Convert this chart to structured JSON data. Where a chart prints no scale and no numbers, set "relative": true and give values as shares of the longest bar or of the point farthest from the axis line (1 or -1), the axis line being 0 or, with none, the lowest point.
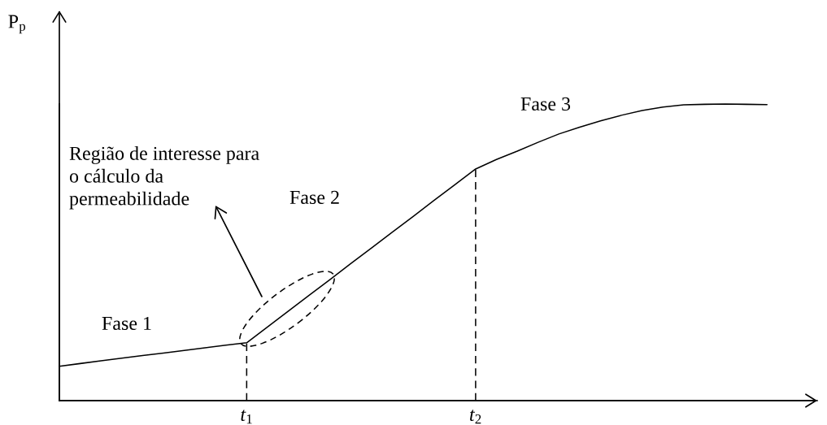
{
  "chart_data": {
    "type": "line",
    "relative": true,
    "ylabel": "P$_{p}$",
    "categories": [
      null,
      null,
      null,
      null,
      null,
      null,
      null,
      null,
      null,
      "t$_{1}$",
      null,
      null,
      null,
      null,
      null,
      null,
      null,
      null,
      null,
      null,
      "t$_{2}$",
      null,
      null,
      null,
      null,
      null,
      null,
      null,
      null,
      null,
      null,
      null,
      null,
      null,
      null
    ],
    "values": [
      0.116,
      0.125,
      0.134,
      0.143,
      0.152,
      0.16,
      0.169,
      0.178,
      0.187,
      0.195,
      0.248,
      0.302,
      0.355,
      0.408,
      0.462,
      0.515,
      0.568,
      0.621,
      0.675,
      0.728,
      0.781,
      0.813,
      0.841,
      0.871,
      0.899,
      0.922,
      0.943,
      0.962,
      0.978,
      0.99,
      0.997,
      0.999,
      1.0,
      0.999,
      0.998
    ],
    "color": "#000000",
    "line_style": "solid",
    "ref_lines": [
      {
        "axis": "x",
        "value": "t$_{1}$",
        "color": "#000000",
        "line_style": "dashed"
      },
      {
        "axis": "x",
        "value": "t$_{2}$",
        "color": "#000000",
        "line_style": "dashed"
      }
    ],
    "annotations": [
      "Fase 1",
      "Fase 2",
      "Fase 3",
      "Região de interesse para\no cálculo da\npermeabilidade"
    ]
  }
}
